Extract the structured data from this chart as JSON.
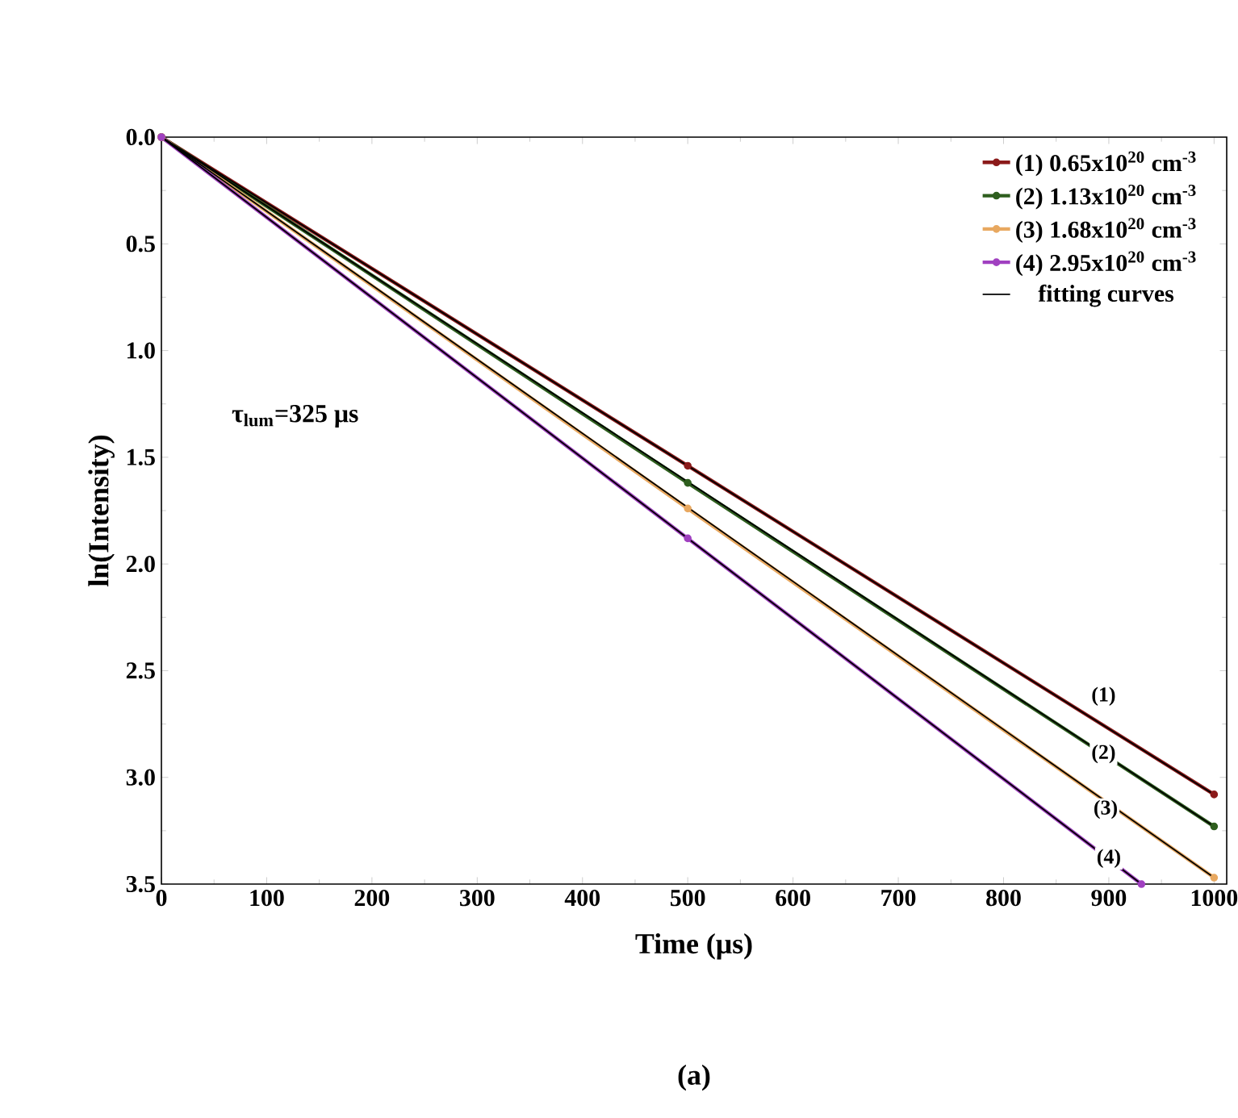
{
  "chart_data": {
    "type": "line",
    "xlabel": "Time (μs)",
    "ylabel": "ln(Intensity)",
    "xlim": [
      0,
      1012
    ],
    "ylim": [
      3.5,
      0
    ],
    "xticks": [
      0,
      100,
      200,
      300,
      400,
      500,
      600,
      700,
      800,
      900,
      1000
    ],
    "yticks": [
      {
        "value": 0,
        "label": "0.0"
      },
      0.5,
      {
        "value": 1,
        "label": "1.0"
      },
      1.5,
      {
        "value": 2,
        "label": "2.0"
      },
      2.5,
      {
        "value": 3,
        "label": "3.0"
      },
      3.5
    ],
    "legend": "top right",
    "marker": "circle",
    "grid": false,
    "series": [
      {
        "name": "(1) 0.65x10$^{20}$ cm$^{-3}$",
        "color": "#8b1a1a",
        "x": [
          0,
          500,
          1000
        ],
        "values": [
          0,
          1.54,
          3.08
        ]
      },
      {
        "name": "(2) 1.13x10$^{20}$ cm$^{-3}$",
        "color": "#2e5e1e",
        "x": [
          0,
          500,
          1000
        ],
        "values": [
          0,
          1.62,
          3.23
        ]
      },
      {
        "name": "(3) 1.68x10$^{20}$ cm$^{-3}$",
        "color": "#e8a860",
        "x": [
          0,
          500,
          1000
        ],
        "values": [
          0,
          1.74,
          3.47
        ]
      },
      {
        "name": "(4) 2.95x10$^{20}$ cm$^{-3}$",
        "color": "#a040c0",
        "x": [
          0,
          500,
          931
        ],
        "values": [
          0,
          1.88,
          3.5
        ]
      },
      {
        "name": "fitting curves",
        "color": "#000000",
        "marker": "none",
        "x": [
          0,
          1000
        ],
        "values": [
          0,
          3.08
        ]
      },
      {
        "color": "#000000",
        "marker": "none",
        "x": [
          0,
          1000
        ],
        "values": [
          0,
          3.23
        ]
      },
      {
        "color": "#000000",
        "marker": "none",
        "x": [
          0,
          1000
        ],
        "values": [
          0,
          3.47
        ]
      },
      {
        "color": "#000000",
        "marker": "none",
        "x": [
          0,
          931
        ],
        "values": [
          0,
          3.5
        ]
      }
    ],
    "annotations": [
      "τ$_{lum}$=325 μs",
      {
        "text": "(1)",
        "x": 895,
        "y": 2.62
      },
      {
        "text": "(2)",
        "x": 895,
        "y": 2.89
      },
      {
        "text": "(3)",
        "x": 897,
        "y": 3.15
      },
      {
        "text": "(4)",
        "x": 900,
        "y": 3.38
      },
      "(a)"
    ]
  }
}
